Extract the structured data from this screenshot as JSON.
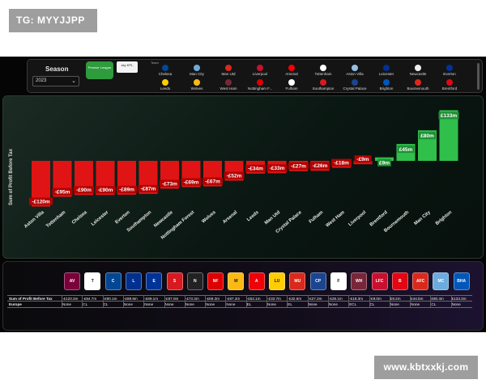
{
  "watermarks": {
    "top_left": "TG: MYYJJPP",
    "bottom_right": "www.kbtxxkj.com"
  },
  "filters": {
    "season_label": "Season",
    "season_value": "2023",
    "league_tile": "Premier League",
    "broadcaster_tile": "sky EPL",
    "team_header": "Team",
    "teams_row1": [
      {
        "name": "Chelsea",
        "color": "#034694"
      },
      {
        "name": "Man City",
        "color": "#6cabdd"
      },
      {
        "name": "Man Utd",
        "color": "#da291c"
      },
      {
        "name": "Liverpool",
        "color": "#c8102e"
      },
      {
        "name": "Arsenal",
        "color": "#ef0107"
      },
      {
        "name": "Tottenham",
        "color": "#ffffff"
      },
      {
        "name": "Aston Villa",
        "color": "#95bfe5"
      },
      {
        "name": "Leicester",
        "color": "#003090"
      },
      {
        "name": "Newcastle",
        "color": "#eeeeee"
      },
      {
        "name": "Everton",
        "color": "#003399"
      }
    ],
    "teams_row2": [
      {
        "name": "Leeds",
        "color": "#ffcd00"
      },
      {
        "name": "Wolves",
        "color": "#fdb913"
      },
      {
        "name": "West Ham",
        "color": "#7a263a"
      },
      {
        "name": "Nottingham F...",
        "color": "#dd0000"
      },
      {
        "name": "Fulham",
        "color": "#ffffff"
      },
      {
        "name": "Southampton",
        "color": "#d71920"
      },
      {
        "name": "Crystal Palace",
        "color": "#1b458f"
      },
      {
        "name": "Brighton",
        "color": "#0057b8"
      },
      {
        "name": "Bournemouth",
        "color": "#da291c"
      },
      {
        "name": "Brentford",
        "color": "#e30613"
      }
    ]
  },
  "chart_data": {
    "type": "bar",
    "ylabel": "Sum of Profit Before Tax",
    "categories": [
      "Aston Villa",
      "Tottenham",
      "Chelsea",
      "Leicester",
      "Everton",
      "Southampton",
      "Newcastle",
      "Nottingham Forest",
      "Wolves",
      "Arsenal",
      "Leeds",
      "Man Utd",
      "Crystal Palace",
      "Fulham",
      "West Ham",
      "Liverpool",
      "Brentford",
      "Bournemouth",
      "Man City",
      "Brighton"
    ],
    "values": [
      -120.3,
      -94.7,
      -90.1,
      -89.8,
      -89.1,
      -87.0,
      -73.3,
      -69.2,
      -67.2,
      -52.1,
      -33.7,
      -32.6,
      -27.2,
      -26.1,
      -18.3,
      -9.0,
      9.2,
      44.5,
      80.4,
      133.3
    ],
    "labels": [
      "-£120m",
      "-£95m",
      "-£90m",
      "-£90m",
      "-£89m",
      "-£87m",
      "-£73m",
      "-£69m",
      "-£67m",
      "-£52m",
      "-£34m",
      "-£33m",
      "-£27m",
      "-£26m",
      "-£18m",
      "-£9m",
      "£9m",
      "£45m",
      "£80m",
      "£133m"
    ],
    "colors": {
      "negative": "#e01414",
      "positive": "#2fbf4a"
    },
    "ylim": [
      -130,
      140
    ],
    "grid": false
  },
  "table": {
    "row_headers": [
      "Sum of Profit Before Tax",
      "Europe"
    ],
    "columns": [
      {
        "profit": "-£120.3m",
        "europe": "None",
        "color": "#7a003c",
        "abbr": "AV"
      },
      {
        "profit": "-£94.7m",
        "europe": "CL",
        "color": "#ffffff",
        "abbr": "T"
      },
      {
        "profit": "-£90.1m",
        "europe": "CL",
        "color": "#034694",
        "abbr": "C"
      },
      {
        "profit": "-£89.8m",
        "europe": "None",
        "color": "#003090",
        "abbr": "L"
      },
      {
        "profit": "-£89.1m",
        "europe": "None",
        "color": "#003399",
        "abbr": "E"
      },
      {
        "profit": "-£87.0m",
        "europe": "None",
        "color": "#d71920",
        "abbr": "S"
      },
      {
        "profit": "-£73.3m",
        "europe": "None",
        "color": "#222222",
        "abbr": "N"
      },
      {
        "profit": "-£69.2m",
        "europe": "None",
        "color": "#dd0000",
        "abbr": "NF"
      },
      {
        "profit": "-£67.2m",
        "europe": "None",
        "color": "#fdb913",
        "abbr": "W"
      },
      {
        "profit": "-£52.1m",
        "europe": "EL",
        "color": "#ef0107",
        "abbr": "A"
      },
      {
        "profit": "-£33.7m",
        "europe": "None",
        "color": "#ffcd00",
        "abbr": "LU"
      },
      {
        "profit": "-£32.6m",
        "europe": "EL",
        "color": "#da291c",
        "abbr": "MU"
      },
      {
        "profit": "-£27.2m",
        "europe": "None",
        "color": "#1b458f",
        "abbr": "CP"
      },
      {
        "profit": "-£26.1m",
        "europe": "None",
        "color": "#ffffff",
        "abbr": "F"
      },
      {
        "profit": "-£18.3m",
        "europe": "ECL",
        "color": "#7a263a",
        "abbr": "WH"
      },
      {
        "profit": "-£9.0m",
        "europe": "CL",
        "color": "#c8102e",
        "abbr": "LFC"
      },
      {
        "profit": "£9.2m",
        "europe": "None",
        "color": "#e30613",
        "abbr": "B"
      },
      {
        "profit": "£44.5m",
        "europe": "None",
        "color": "#da291c",
        "abbr": "AFC"
      },
      {
        "profit": "£80.4m",
        "europe": "CL",
        "color": "#6cabdd",
        "abbr": "MC"
      },
      {
        "profit": "£133.3m",
        "europe": "None",
        "color": "#0057b8",
        "abbr": "BHA"
      }
    ]
  }
}
